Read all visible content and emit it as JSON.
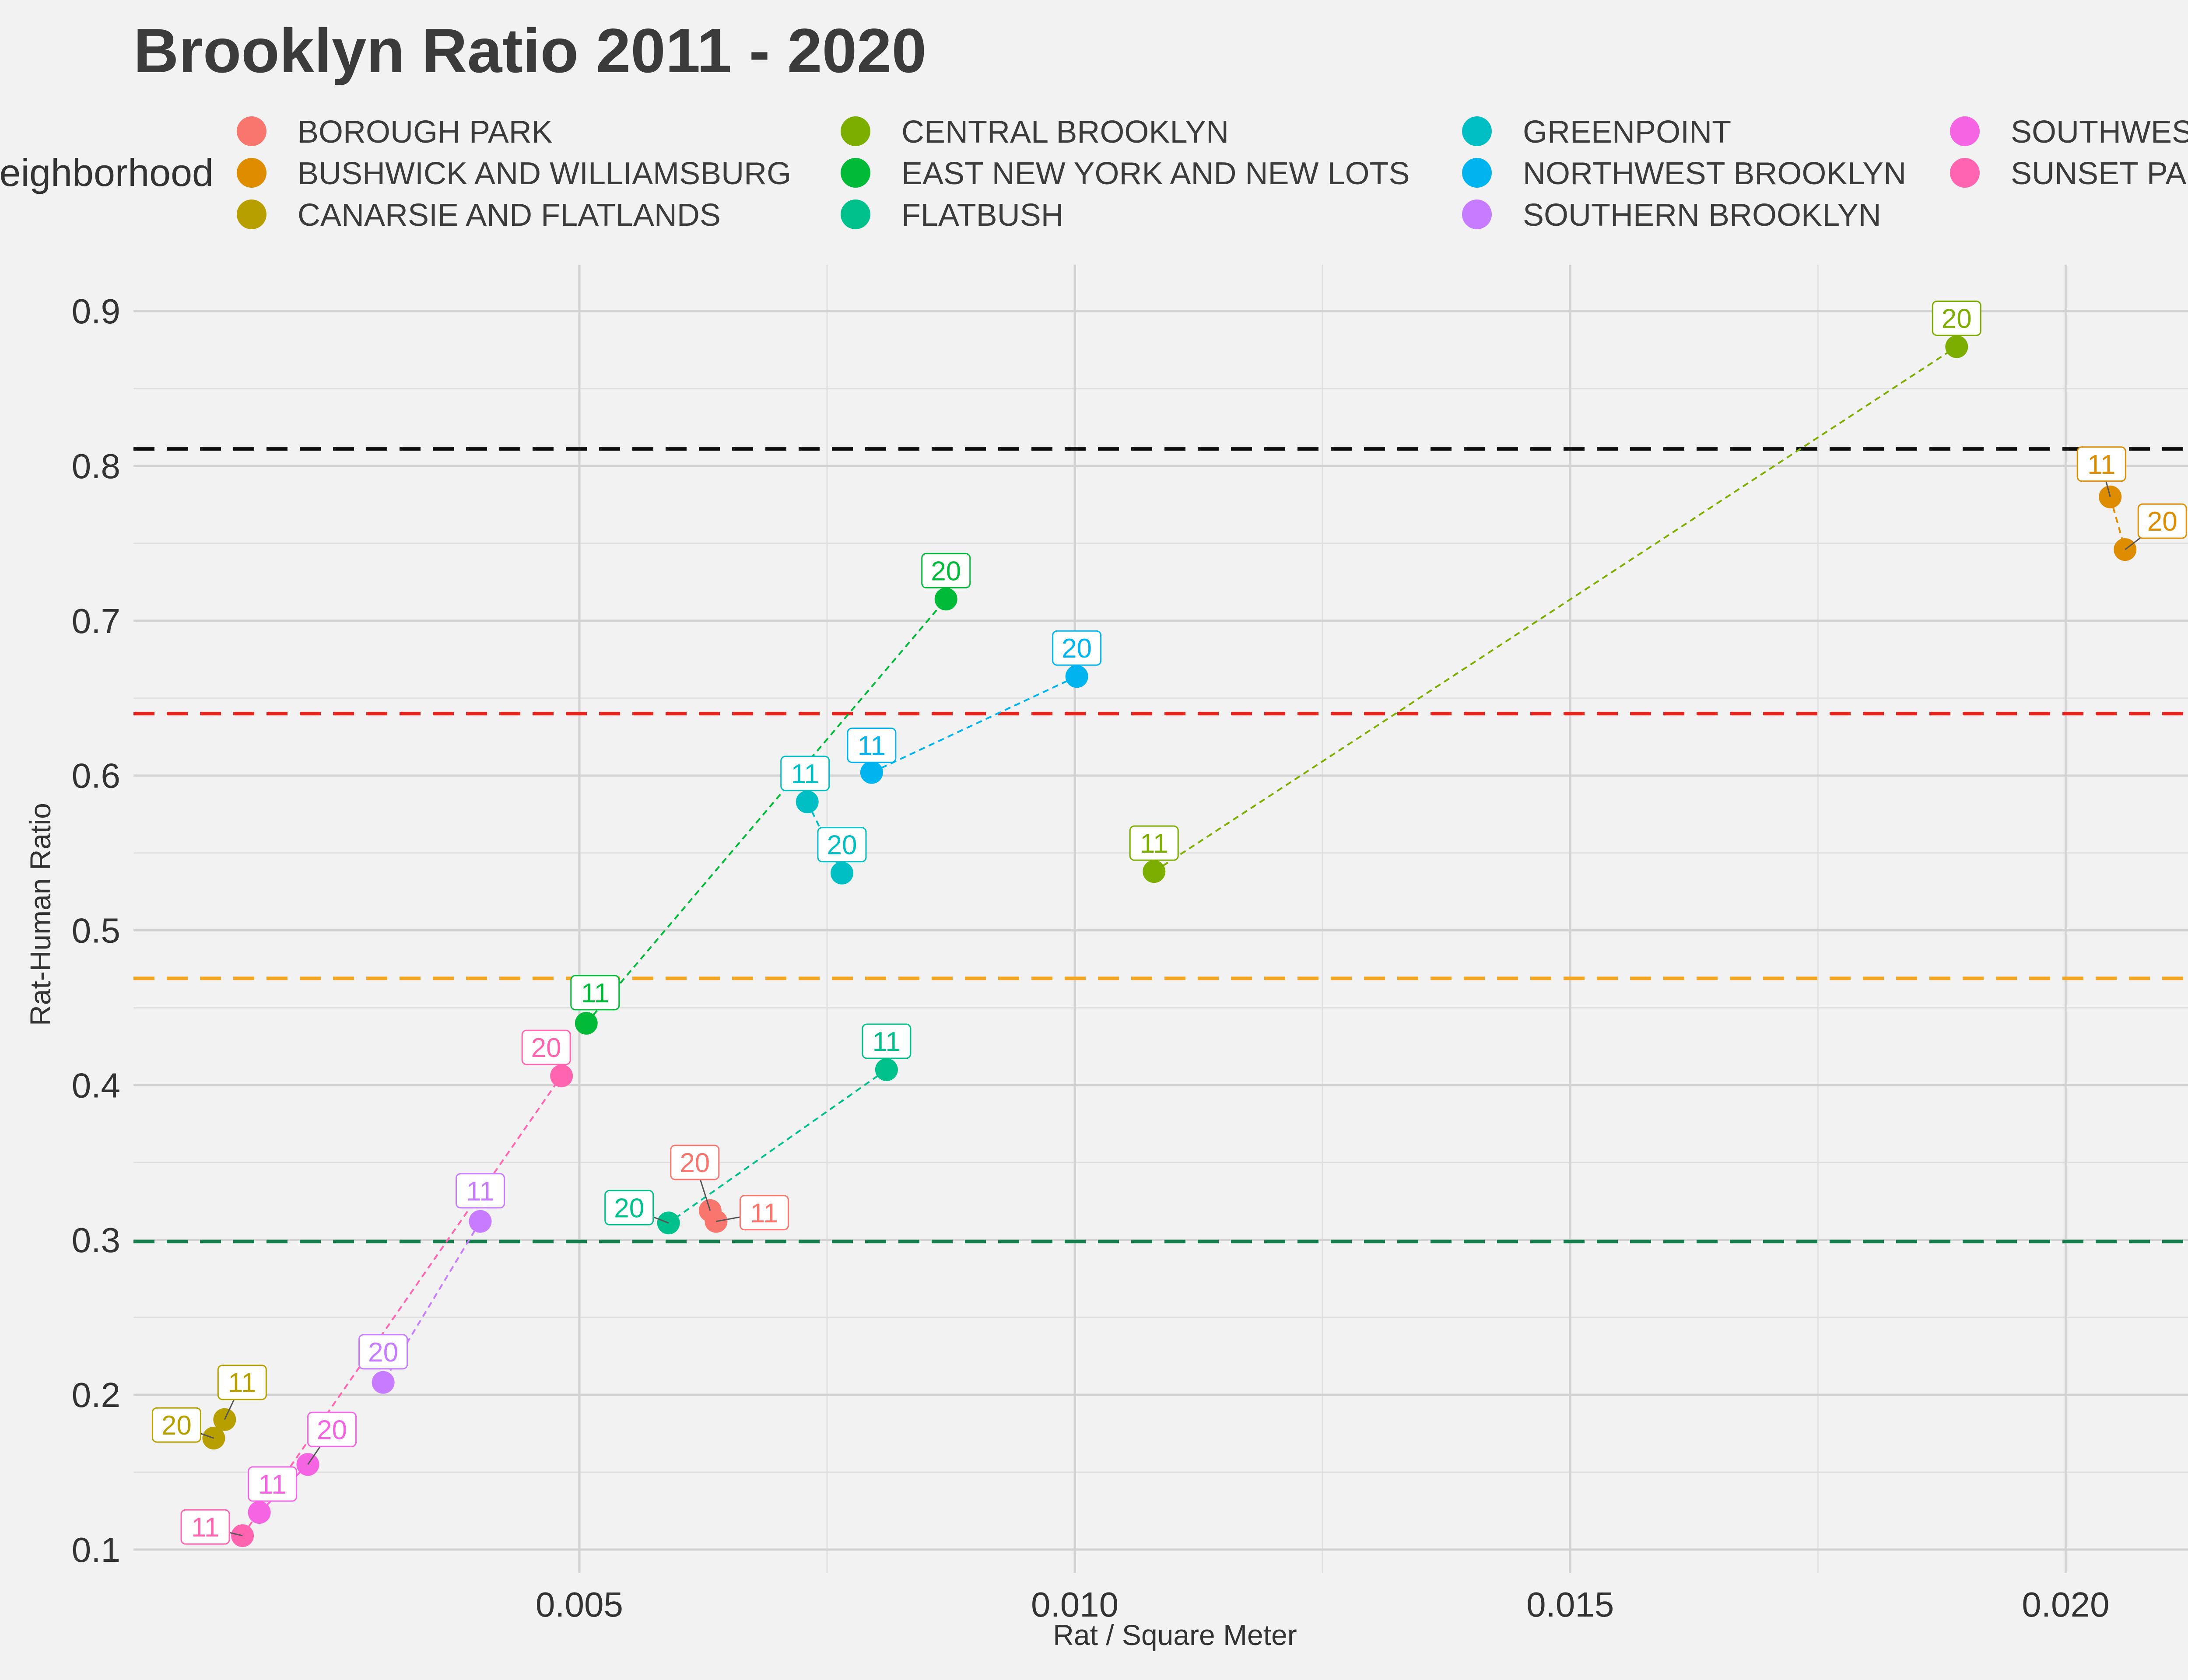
{
  "chart_data": {
    "type": "scatter",
    "title": "Brooklyn Ratio 2011 - 2020",
    "xlabel": "Rat / Square Meter",
    "ylabel": "Rat-Human Ratio",
    "xlim": [
      0.0005,
      0.0215
    ],
    "ylim": [
      0.085,
      0.93
    ],
    "x_ticks": [
      0.005,
      0.01,
      0.015,
      0.02
    ],
    "x_tick_labels": [
      "0.005",
      "0.010",
      "0.015",
      "0.020"
    ],
    "y_ticks": [
      0.1,
      0.2,
      0.3,
      0.4,
      0.5,
      0.6,
      0.7,
      0.8,
      0.9
    ],
    "y_tick_labels": [
      "0.1",
      "0.2",
      "0.3",
      "0.4",
      "0.5",
      "0.6",
      "0.7",
      "0.8",
      "0.9"
    ],
    "grid": true,
    "legend": {
      "title": "Neighborhood",
      "position": "top",
      "columns": 4
    },
    "reference_lines": [
      {
        "y": 0.811,
        "color": "#111111"
      },
      {
        "y": 0.64,
        "color": "#e8241f"
      },
      {
        "y": 0.469,
        "color": "#f5a623"
      },
      {
        "y": 0.299,
        "color": "#137a4a"
      }
    ],
    "series": [
      {
        "name": "BOROUGH PARK",
        "color": "#f8766d",
        "points": [
          {
            "label": "11",
            "x": 0.00638,
            "y": 0.312
          },
          {
            "label": "20",
            "x": 0.00632,
            "y": 0.319
          }
        ]
      },
      {
        "name": "BUSHWICK AND WILLIAMSBURG",
        "color": "#de8c00",
        "points": [
          {
            "label": "11",
            "x": 0.02045,
            "y": 0.78
          },
          {
            "label": "20",
            "x": 0.0206,
            "y": 0.746
          }
        ]
      },
      {
        "name": "CANARSIE AND FLATLANDS",
        "color": "#b79f00",
        "points": [
          {
            "label": "11",
            "x": 0.00142,
            "y": 0.184
          },
          {
            "label": "20",
            "x": 0.00131,
            "y": 0.172
          }
        ]
      },
      {
        "name": "CENTRAL BROOKLYN",
        "color": "#7cae00",
        "points": [
          {
            "label": "11",
            "x": 0.0108,
            "y": 0.538
          },
          {
            "label": "20",
            "x": 0.0189,
            "y": 0.877
          }
        ]
      },
      {
        "name": "EAST NEW YORK AND NEW LOTS",
        "color": "#00ba38",
        "points": [
          {
            "label": "11",
            "x": 0.00507,
            "y": 0.44
          },
          {
            "label": "20",
            "x": 0.0087,
            "y": 0.714
          }
        ]
      },
      {
        "name": "FLATBUSH",
        "color": "#00c08b",
        "points": [
          {
            "label": "11",
            "x": 0.0081,
            "y": 0.41
          },
          {
            "label": "20",
            "x": 0.0059,
            "y": 0.311
          }
        ]
      },
      {
        "name": "GREENPOINT",
        "color": "#00bfc4",
        "points": [
          {
            "label": "11",
            "x": 0.0073,
            "y": 0.583
          },
          {
            "label": "20",
            "x": 0.00765,
            "y": 0.537
          }
        ]
      },
      {
        "name": "NORTHWEST BROOKLYN",
        "color": "#00b4f0",
        "points": [
          {
            "label": "11",
            "x": 0.00795,
            "y": 0.602
          },
          {
            "label": "20",
            "x": 0.01002,
            "y": 0.664
          }
        ]
      },
      {
        "name": "SOUTHERN BROOKLYN",
        "color": "#c77cff",
        "points": [
          {
            "label": "11",
            "x": 0.004,
            "y": 0.312
          },
          {
            "label": "20",
            "x": 0.00302,
            "y": 0.208
          }
        ]
      },
      {
        "name": "SOUTHWEST B",
        "color": "#f564e3",
        "points": [
          {
            "label": "11",
            "x": 0.00177,
            "y": 0.124
          },
          {
            "label": "20",
            "x": 0.00226,
            "y": 0.155
          }
        ]
      },
      {
        "name": "SUNSET PARK",
        "color": "#ff64b0",
        "points": [
          {
            "label": "11",
            "x": 0.0016,
            "y": 0.109
          },
          {
            "label": "20",
            "x": 0.00482,
            "y": 0.406
          }
        ]
      }
    ]
  }
}
